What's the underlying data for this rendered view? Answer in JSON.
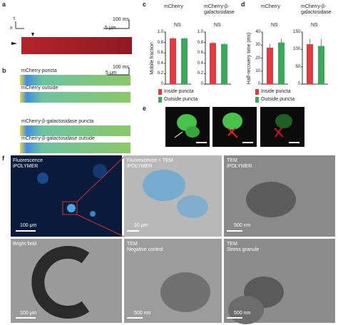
{
  "panel_labels": [
    "a",
    "b",
    "c",
    "d",
    "e",
    "f"
  ],
  "a": {
    "axis_x": "x",
    "axis_t": "t",
    "time_scale": "100 ms",
    "length_scale": "5 μm"
  },
  "b": {
    "time_scale": "100 ms",
    "length_scale": "5 μm",
    "strips": [
      "mCherry puncta",
      "mCherry outside",
      "mCherry-β-galactosidase puncta",
      "mCherry-β-galactosidase outside"
    ]
  },
  "c": {
    "y_label": "Mobile fraction",
    "colors": [
      "#e23b3f",
      "#3aa95b"
    ],
    "legend": [
      "Inside puncta",
      "Outside puncta"
    ],
    "subplots": [
      {
        "title": "mCherry",
        "annotation": "NS",
        "ylim": [
          0,
          1
        ],
        "yticks": [
          0,
          0.2,
          0.4,
          0.6,
          0.8,
          {
            "value": 1,
            "label": "1.0"
          }
        ],
        "values": [
          0.88,
          0.88
        ],
        "errors": [
          0.02,
          0.01
        ]
      },
      {
        "title": "mCherry-β-galactosidase",
        "annotation": "NS",
        "ylim": [
          0,
          1
        ],
        "yticks": [
          0,
          0.2,
          0.4,
          0.6,
          0.8,
          {
            "value": 1,
            "label": "1.0"
          }
        ],
        "values": [
          0.79,
          0.77
        ],
        "errors": [
          0.02,
          0.02
        ]
      }
    ]
  },
  "d": {
    "y_label": "Half-recovery time (ms)",
    "colors": [
      "#e23b3f",
      "#3aa95b"
    ],
    "legend": [
      "Inside puncta",
      "Outside puncta"
    ],
    "subplots": [
      {
        "title": "mCherry",
        "annotation": "NS",
        "ylim": [
          0,
          40
        ],
        "yticks": [
          0,
          10,
          20,
          30,
          40
        ],
        "values": [
          28,
          32
        ],
        "errors": [
          3,
          3
        ]
      },
      {
        "title": "mCherry-β-galactosidase",
        "annotation": "NS",
        "ylim": [
          0,
          150
        ],
        "yticks": [
          0,
          50,
          100,
          150
        ],
        "values": [
          115,
          110
        ],
        "errors": [
          15,
          20
        ]
      }
    ]
  },
  "f": {
    "images": [
      {
        "title": "Fluorescence",
        "subtitle": "iPOLYMER",
        "scale": "100 μm"
      },
      {
        "title": "Fluorescence + TEM",
        "subtitle": "iPOLYMER",
        "scale": "10 μm"
      },
      {
        "title": "TEM",
        "subtitle": "iPOLYMER",
        "scale": "500 nm"
      },
      {
        "title": "Bright field",
        "scale": "100 μm"
      },
      {
        "title": "TEM",
        "subtitle": "Negative control",
        "scale": "500 nm"
      },
      {
        "title": "TEM",
        "subtitle": "Stress granule",
        "scale": "500 nm"
      }
    ]
  }
}
